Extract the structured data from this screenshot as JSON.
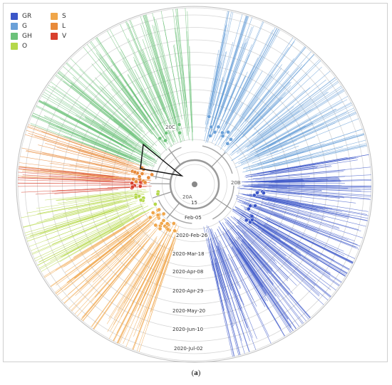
{
  "legend": {
    "items": [
      {
        "label": "GR",
        "color": "#3b56c8"
      },
      {
        "label": "G",
        "color": "#6aa0d8"
      },
      {
        "label": "GH",
        "color": "#6cc27a"
      },
      {
        "label": "O",
        "color": "#b5d84a"
      },
      {
        "label": "S",
        "color": "#f0a64a"
      },
      {
        "label": "L",
        "color": "#e88a3a"
      },
      {
        "label": "V",
        "color": "#d8402e"
      }
    ]
  },
  "date_labels": [
    "15",
    "Feb-05",
    "2020-Feb-26",
    "2020-Mar-18",
    "2020-Apr-08",
    "2020-Apr-29",
    "2020-May-20",
    "2020-Jun-10",
    "2020-Jul-02"
  ],
  "clade_labels": [
    "20C",
    "20B",
    "20A"
  ],
  "caption": {
    "open": "(",
    "letter": "a",
    "close": ")"
  }
}
